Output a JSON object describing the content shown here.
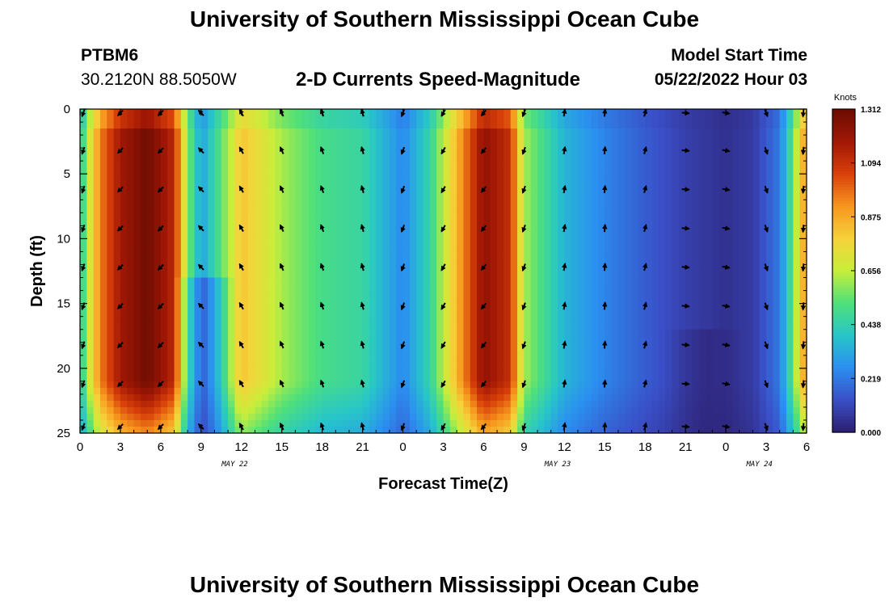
{
  "header": {
    "title": "University of Southern Mississippi Ocean Cube",
    "station": "PTBM6",
    "coords": "30.2120N  88.5050W",
    "plot_title": "2-D Currents Speed-Magnitude",
    "model_label": "Model Start Time",
    "model_time": "05/22/2022 Hour 03"
  },
  "footer": {
    "title": "University of Southern Mississippi Ocean Cube"
  },
  "chart_data": {
    "type": "heatmap",
    "title": "2-D Currents Speed-Magnitude",
    "xlabel": "Forecast Time(Z)",
    "ylabel": "Depth (ft)",
    "x_tick_labels": [
      "0",
      "3",
      "6",
      "9",
      "12",
      "15",
      "18",
      "21",
      "0",
      "3",
      "6",
      "9",
      "12",
      "15",
      "18",
      "21",
      "0",
      "3",
      "6"
    ],
    "x_tick_hours": [
      0,
      3,
      6,
      9,
      12,
      15,
      18,
      21,
      24,
      27,
      30,
      33,
      36,
      39,
      42,
      45,
      48,
      51,
      54
    ],
    "xlim_hours": [
      0,
      54
    ],
    "date_labels": [
      {
        "text": "MAY 22",
        "hour": 11.5
      },
      {
        "text": "MAY 23",
        "hour": 35.5
      },
      {
        "text": "MAY 24",
        "hour": 50.5
      }
    ],
    "y_ticks": [
      0,
      5,
      10,
      15,
      20,
      25
    ],
    "ylim_ft": [
      0,
      25
    ],
    "colorbar": {
      "label": "Knots",
      "ticks": [
        "1.312",
        "1.094",
        "0.875",
        "0.656",
        "0.438",
        "0.219",
        "0.000"
      ],
      "range": [
        0,
        1.312
      ],
      "colors": [
        "#2d1e6e",
        "#3a4fc7",
        "#2b8ff0",
        "#27c6c8",
        "#4fe07a",
        "#c8ee3a",
        "#f6d23a",
        "#f7951e",
        "#d8400a",
        "#a11705",
        "#6b0d02"
      ]
    },
    "speed_profile_by_hour": [
      {
        "hour": 0,
        "speed": 0.4
      },
      {
        "hour": 0.6,
        "speed": 0.65
      },
      {
        "hour": 1.5,
        "speed": 0.95
      },
      {
        "hour": 3,
        "speed": 1.18
      },
      {
        "hour": 5,
        "speed": 1.3
      },
      {
        "hour": 7,
        "speed": 1.12
      },
      {
        "hour": 8,
        "speed": 0.6
      },
      {
        "hour": 9,
        "speed": 0.3
      },
      {
        "hour": 11,
        "speed": 0.62
      },
      {
        "hour": 12,
        "speed": 0.82
      },
      {
        "hour": 15,
        "speed": 0.62
      },
      {
        "hour": 18,
        "speed": 0.5
      },
      {
        "hour": 21,
        "speed": 0.46
      },
      {
        "hour": 23,
        "speed": 0.32
      },
      {
        "hour": 24,
        "speed": 0.25
      },
      {
        "hour": 26,
        "speed": 0.45
      },
      {
        "hour": 28,
        "speed": 0.85
      },
      {
        "hour": 30,
        "speed": 1.22
      },
      {
        "hour": 32,
        "speed": 1.1
      },
      {
        "hour": 33,
        "speed": 0.62
      },
      {
        "hour": 36,
        "speed": 0.35
      },
      {
        "hour": 39,
        "speed": 0.24
      },
      {
        "hour": 42,
        "speed": 0.16
      },
      {
        "hour": 45,
        "speed": 0.09
      },
      {
        "hour": 48,
        "speed": 0.05
      },
      {
        "hour": 50,
        "speed": 0.08
      },
      {
        "hour": 52,
        "speed": 0.22
      },
      {
        "hour": 53,
        "speed": 0.55
      },
      {
        "hour": 54,
        "speed": 0.95
      }
    ],
    "vector_depths_ft": [
      0.3,
      3.2,
      6.2,
      9.2,
      12.2,
      15.2,
      18.2,
      21.2,
      24.5
    ],
    "vector_direction_deg_by_hour": [
      {
        "hour": 0,
        "dir": 200
      },
      {
        "hour": 3,
        "dir": 225
      },
      {
        "hour": 6,
        "dir": 225
      },
      {
        "hour": 9,
        "dir": 315
      },
      {
        "hour": 12,
        "dir": 330
      },
      {
        "hour": 15,
        "dir": 335
      },
      {
        "hour": 18,
        "dir": 340
      },
      {
        "hour": 21,
        "dir": 345
      },
      {
        "hour": 24,
        "dir": 200
      },
      {
        "hour": 27,
        "dir": 210
      },
      {
        "hour": 30,
        "dir": 220
      },
      {
        "hour": 33,
        "dir": 200
      },
      {
        "hour": 36,
        "dir": 10
      },
      {
        "hour": 39,
        "dir": 5
      },
      {
        "hour": 42,
        "dir": 15
      },
      {
        "hour": 45,
        "dir": 95
      },
      {
        "hour": 48,
        "dir": 100
      },
      {
        "hour": 51,
        "dir": 160
      },
      {
        "hour": 54,
        "dir": 185
      }
    ]
  }
}
